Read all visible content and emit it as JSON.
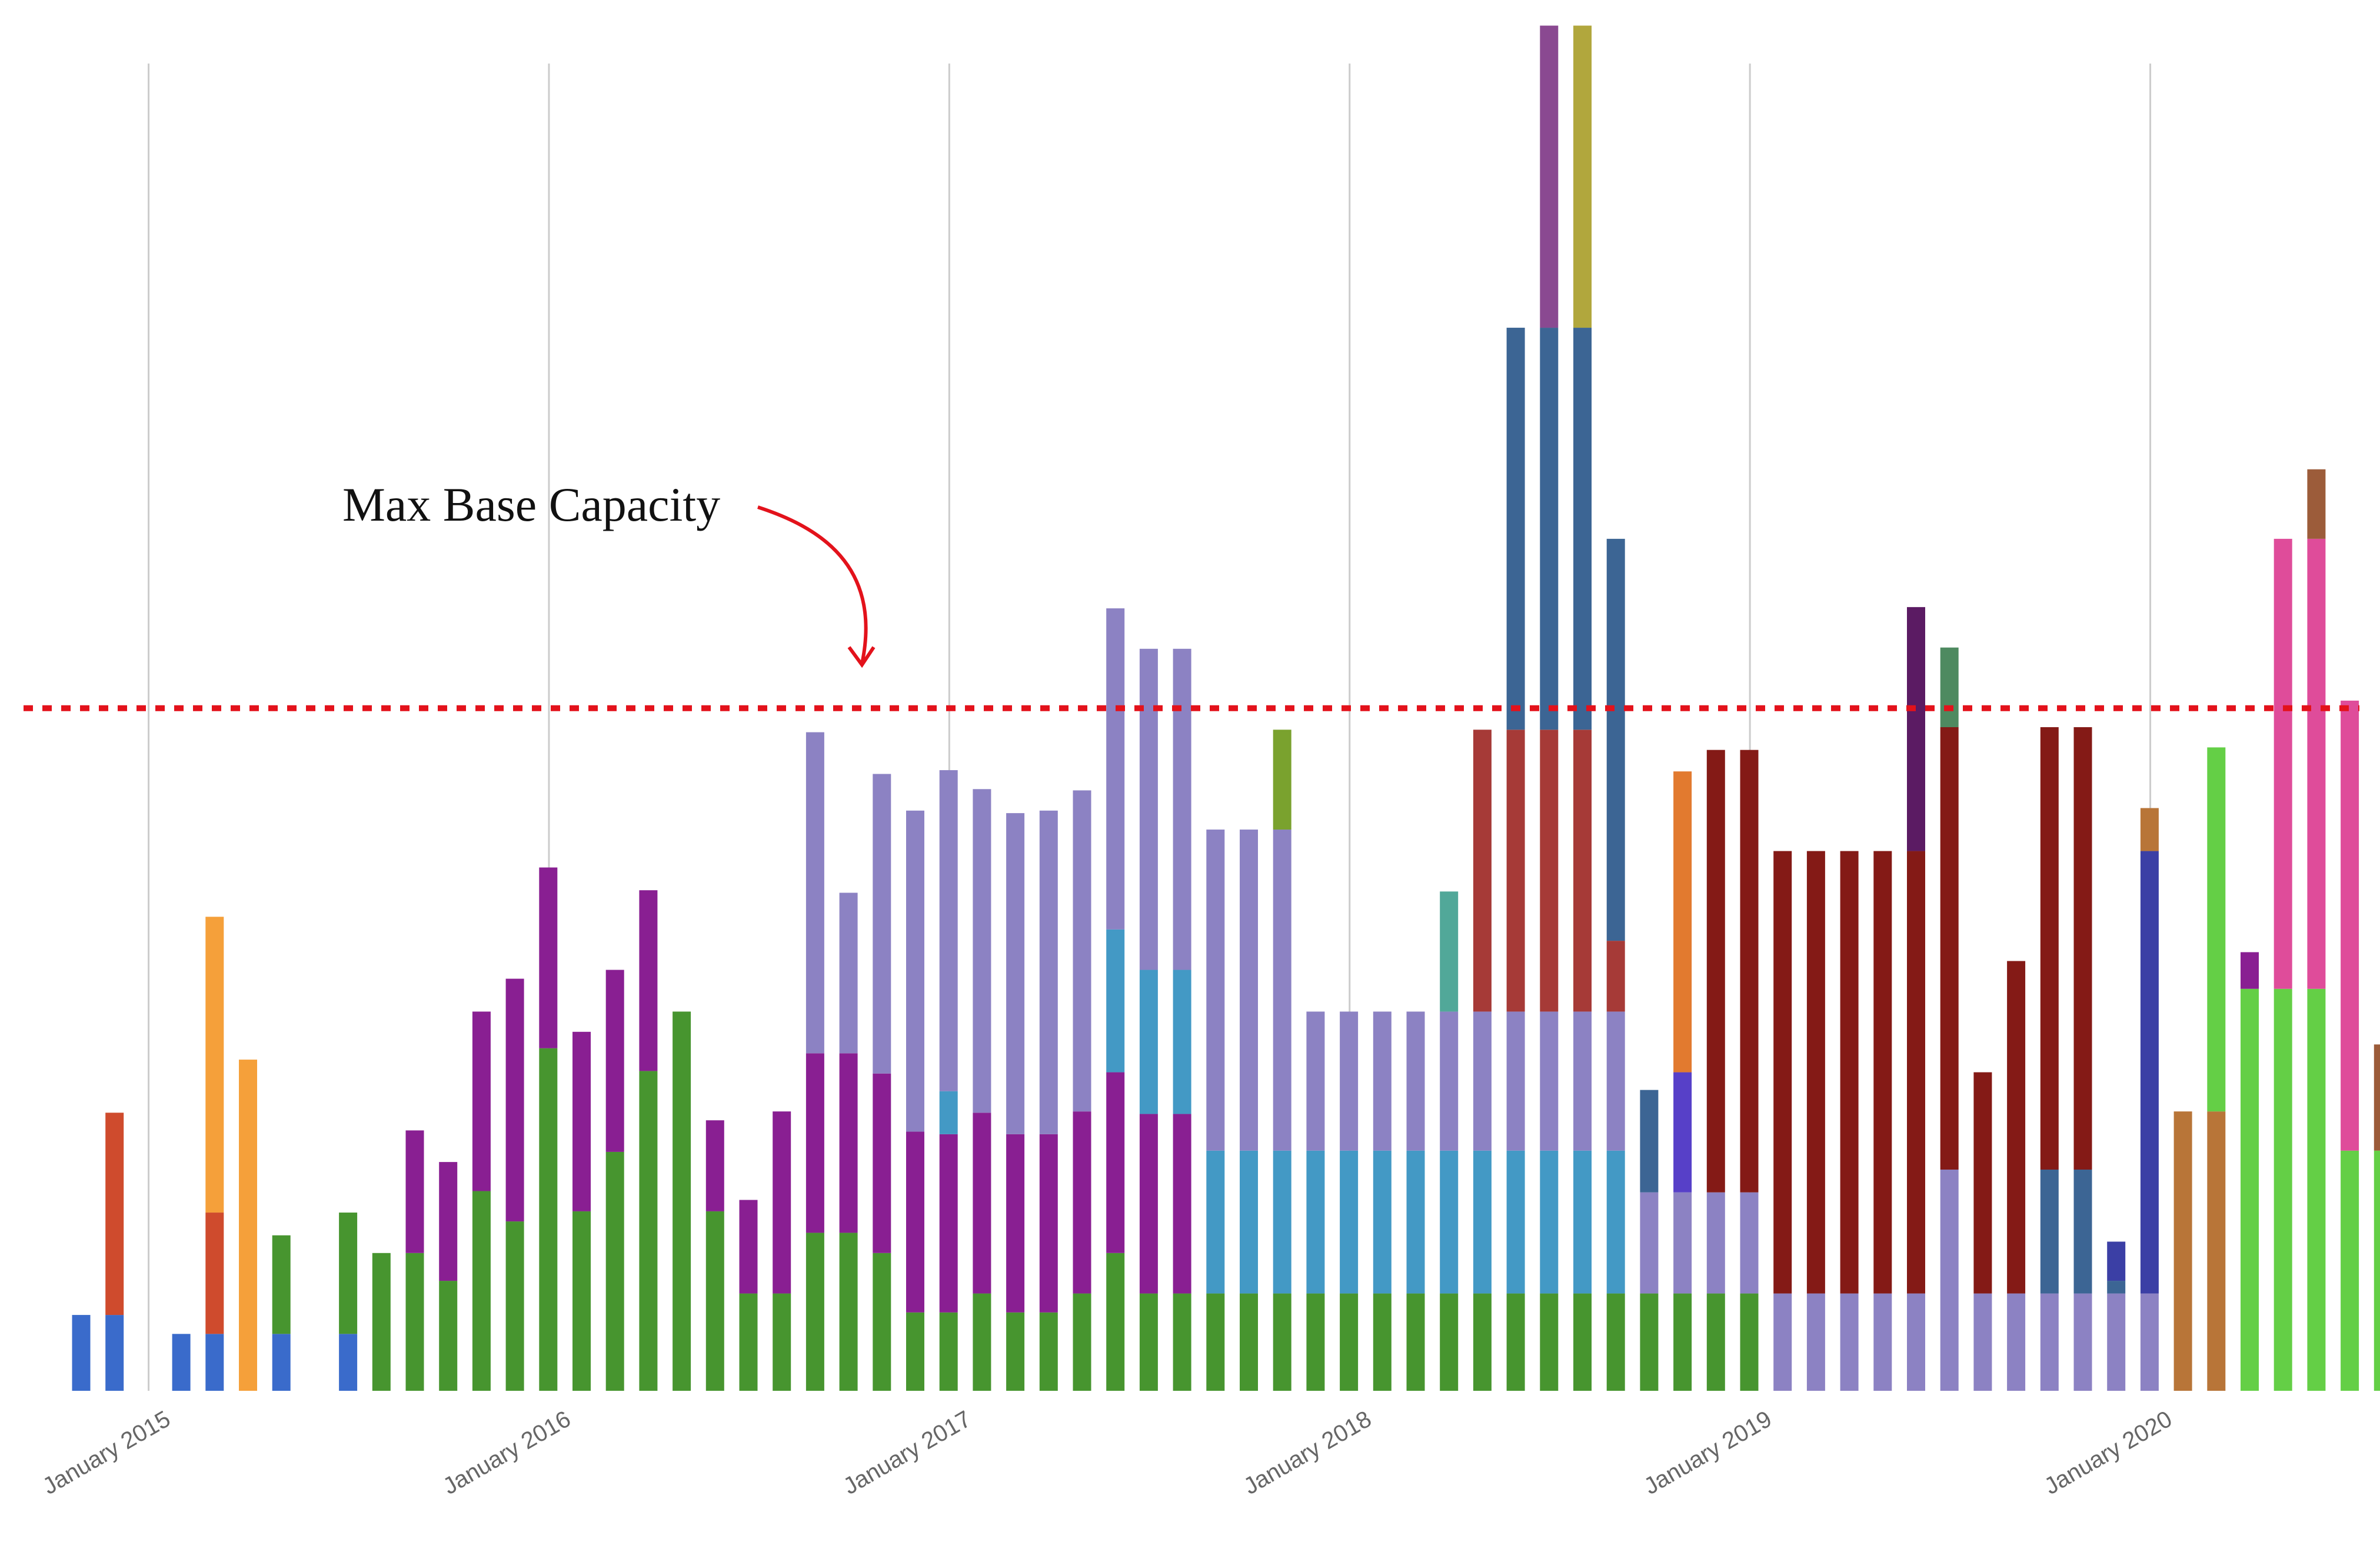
{
  "chart_data": {
    "type": "bar",
    "stacked": true,
    "title": "",
    "xlabel": "",
    "ylabel": "",
    "ylim": [
      0,
      10.5
    ],
    "grid": "vertical",
    "x_ticks": [
      "January 2015",
      "January 2016",
      "January 2017",
      "January 2018",
      "January 2019",
      "January 2020"
    ],
    "reference_line": {
      "value": 5.4,
      "style": "dotted",
      "color": "#e3121b"
    },
    "annotations": [
      {
        "text": "Max Base Capacity"
      }
    ],
    "series_colors": {
      "blue": "#3a6bcb",
      "orange_red": "#cf4b2d",
      "orange": "#f5a03a",
      "green": "#47952f",
      "purple": "#891f92",
      "lavender": "#8c82c3",
      "teal_blue": "#4399c5",
      "olive_green": "#7aa22e",
      "teal": "#51a899",
      "brick": "#a63a37",
      "slate_blue": "#3c6594",
      "mauve": "#8a4991",
      "olive_yellow": "#b1a73d",
      "violet": "#5740c8",
      "dark_orange": "#e27a2f",
      "maroon": "#841a16",
      "dark_purple": "#5b1b63",
      "sea_green": "#4e8a60",
      "navy": "#3b3fa5",
      "copper": "#b87538",
      "lime": "#64cf46",
      "pink": "#df4c9a",
      "brown": "#9c5c3a"
    },
    "months": [
      {
        "index": 0,
        "segments": [
          [
            "blue",
            0.6
          ]
        ]
      },
      {
        "index": 1,
        "segments": [
          [
            "blue",
            0.6
          ],
          [
            "orange_red",
            1.6
          ]
        ]
      },
      {
        "index": 3,
        "segments": [
          [
            "blue",
            0.45
          ]
        ]
      },
      {
        "index": 4,
        "segments": [
          [
            "blue",
            0.45
          ],
          [
            "orange_red",
            0.96
          ],
          [
            "orange",
            2.34
          ]
        ]
      },
      {
        "index": 5,
        "segments": [
          [
            "orange",
            2.62
          ]
        ]
      },
      {
        "index": 6,
        "segments": [
          [
            "blue",
            0.45
          ],
          [
            "green",
            0.78
          ]
        ]
      },
      {
        "index": 8,
        "segments": [
          [
            "blue",
            0.45
          ],
          [
            "green",
            0.96
          ]
        ]
      },
      {
        "index": 9,
        "segments": [
          [
            "green",
            1.09
          ]
        ]
      },
      {
        "index": 10,
        "segments": [
          [
            "green",
            1.09
          ],
          [
            "purple",
            0.97
          ]
        ]
      },
      {
        "index": 11,
        "segments": [
          [
            "green",
            0.87
          ],
          [
            "purple",
            0.94
          ]
        ]
      },
      {
        "index": 12,
        "segments": [
          [
            "green",
            1.58
          ],
          [
            "purple",
            1.42
          ]
        ]
      },
      {
        "index": 13,
        "segments": [
          [
            "green",
            1.34
          ],
          [
            "purple",
            1.92
          ]
        ]
      },
      {
        "index": 14,
        "segments": [
          [
            "green",
            2.71
          ],
          [
            "purple",
            1.43
          ]
        ]
      },
      {
        "index": 15,
        "segments": [
          [
            "green",
            1.42
          ],
          [
            "purple",
            1.42
          ]
        ]
      },
      {
        "index": 16,
        "segments": [
          [
            "green",
            1.89
          ],
          [
            "purple",
            1.44
          ]
        ]
      },
      {
        "index": 17,
        "segments": [
          [
            "green",
            2.53
          ],
          [
            "purple",
            1.43
          ]
        ]
      },
      {
        "index": 18,
        "segments": [
          [
            "green",
            3.0
          ]
        ]
      },
      {
        "index": 19,
        "segments": [
          [
            "green",
            1.42
          ],
          [
            "purple",
            0.72
          ]
        ]
      },
      {
        "index": 20,
        "segments": [
          [
            "green",
            0.77
          ],
          [
            "purple",
            0.74
          ]
        ]
      },
      {
        "index": 21,
        "segments": [
          [
            "green",
            0.77
          ],
          [
            "purple",
            1.44
          ]
        ]
      },
      {
        "index": 22,
        "segments": [
          [
            "green",
            1.25
          ],
          [
            "purple",
            1.42
          ],
          [
            "lavender",
            2.54
          ]
        ]
      },
      {
        "index": 23,
        "segments": [
          [
            "green",
            1.25
          ],
          [
            "purple",
            1.42
          ],
          [
            "lavender",
            1.27
          ]
        ]
      },
      {
        "index": 24,
        "segments": [
          [
            "green",
            1.09
          ],
          [
            "purple",
            1.42
          ],
          [
            "lavender",
            2.37
          ]
        ]
      },
      {
        "index": 25,
        "segments": [
          [
            "green",
            0.62
          ],
          [
            "purple",
            1.43
          ],
          [
            "lavender",
            2.54
          ]
        ]
      },
      {
        "index": 26,
        "segments": [
          [
            "green",
            0.62
          ],
          [
            "purple",
            1.41
          ],
          [
            "teal_blue",
            0.34
          ],
          [
            "lavender",
            2.54
          ]
        ]
      },
      {
        "index": 27,
        "segments": [
          [
            "green",
            0.77
          ],
          [
            "purple",
            1.43
          ],
          [
            "lavender",
            2.56
          ]
        ]
      },
      {
        "index": 28,
        "segments": [
          [
            "green",
            0.62
          ],
          [
            "purple",
            1.41
          ],
          [
            "lavender",
            2.54
          ]
        ]
      },
      {
        "index": 29,
        "segments": [
          [
            "green",
            0.62
          ],
          [
            "purple",
            1.41
          ],
          [
            "lavender",
            2.56
          ]
        ]
      },
      {
        "index": 30,
        "segments": [
          [
            "green",
            0.77
          ],
          [
            "purple",
            1.44
          ],
          [
            "lavender",
            2.54
          ]
        ]
      },
      {
        "index": 31,
        "segments": [
          [
            "green",
            1.09
          ],
          [
            "purple",
            1.43
          ],
          [
            "teal_blue",
            1.13
          ],
          [
            "lavender",
            2.54
          ]
        ]
      },
      {
        "index": 32,
        "segments": [
          [
            "green",
            0.77
          ],
          [
            "purple",
            1.42
          ],
          [
            "teal_blue",
            1.14
          ],
          [
            "lavender",
            2.54
          ]
        ]
      },
      {
        "index": 33,
        "segments": [
          [
            "green",
            0.77
          ],
          [
            "purple",
            1.42
          ],
          [
            "teal_blue",
            1.14
          ],
          [
            "lavender",
            2.54
          ]
        ]
      },
      {
        "index": 34,
        "segments": [
          [
            "green",
            0.77
          ],
          [
            "teal_blue",
            1.13
          ],
          [
            "lavender",
            2.54
          ]
        ]
      },
      {
        "index": 35,
        "segments": [
          [
            "green",
            0.77
          ],
          [
            "teal_blue",
            1.13
          ],
          [
            "lavender",
            2.54
          ]
        ]
      },
      {
        "index": 36,
        "segments": [
          [
            "green",
            0.77
          ],
          [
            "teal_blue",
            1.13
          ],
          [
            "lavender",
            2.54
          ],
          [
            "olive_green",
            0.79
          ]
        ]
      },
      {
        "index": 37,
        "segments": [
          [
            "green",
            0.77
          ],
          [
            "teal_blue",
            1.13
          ],
          [
            "lavender",
            1.1
          ]
        ]
      },
      {
        "index": 38,
        "segments": [
          [
            "green",
            0.77
          ],
          [
            "teal_blue",
            1.13
          ],
          [
            "lavender",
            1.1
          ]
        ]
      },
      {
        "index": 39,
        "segments": [
          [
            "green",
            0.77
          ],
          [
            "teal_blue",
            1.13
          ],
          [
            "lavender",
            1.1
          ]
        ]
      },
      {
        "index": 40,
        "segments": [
          [
            "green",
            0.77
          ],
          [
            "teal_blue",
            1.13
          ],
          [
            "lavender",
            1.1
          ]
        ]
      },
      {
        "index": 41,
        "segments": [
          [
            "green",
            0.77
          ],
          [
            "teal_blue",
            1.13
          ],
          [
            "lavender",
            1.1
          ],
          [
            "teal",
            0.95
          ]
        ]
      },
      {
        "index": 42,
        "segments": [
          [
            "green",
            0.77
          ],
          [
            "teal_blue",
            1.13
          ],
          [
            "lavender",
            1.1
          ],
          [
            "brick",
            2.23
          ]
        ]
      },
      {
        "index": 43,
        "segments": [
          [
            "green",
            0.77
          ],
          [
            "teal_blue",
            1.13
          ],
          [
            "lavender",
            1.1
          ],
          [
            "brick",
            2.23
          ],
          [
            "slate_blue",
            3.18
          ]
        ]
      },
      {
        "index": 44,
        "segments": [
          [
            "green",
            0.77
          ],
          [
            "teal_blue",
            1.13
          ],
          [
            "lavender",
            1.1
          ],
          [
            "brick",
            2.23
          ],
          [
            "slate_blue",
            3.18
          ],
          [
            "mauve",
            2.39
          ]
        ]
      },
      {
        "index": 45,
        "segments": [
          [
            "green",
            0.77
          ],
          [
            "teal_blue",
            1.13
          ],
          [
            "lavender",
            1.1
          ],
          [
            "brick",
            2.23
          ],
          [
            "slate_blue",
            3.18
          ],
          [
            "olive_yellow",
            2.39
          ]
        ]
      },
      {
        "index": 46,
        "segments": [
          [
            "green",
            0.77
          ],
          [
            "teal_blue",
            1.13
          ],
          [
            "lavender",
            1.1
          ],
          [
            "brick",
            0.56
          ],
          [
            "slate_blue",
            3.18
          ]
        ]
      },
      {
        "index": 47,
        "segments": [
          [
            "green",
            0.77
          ],
          [
            "lavender",
            0.8
          ],
          [
            "slate_blue",
            0.81
          ]
        ]
      },
      {
        "index": 48,
        "segments": [
          [
            "green",
            0.77
          ],
          [
            "lavender",
            0.8
          ],
          [
            "violet",
            0.95
          ],
          [
            "dark_orange",
            2.38
          ]
        ]
      },
      {
        "index": 49,
        "segments": [
          [
            "green",
            0.77
          ],
          [
            "lavender",
            0.8
          ],
          [
            "maroon",
            3.5
          ]
        ]
      },
      {
        "index": 50,
        "segments": [
          [
            "green",
            0.77
          ],
          [
            "lavender",
            0.8
          ],
          [
            "maroon",
            3.5
          ]
        ]
      },
      {
        "index": 51,
        "segments": [
          [
            "lavender",
            0.77
          ],
          [
            "maroon",
            3.5
          ]
        ]
      },
      {
        "index": 52,
        "segments": [
          [
            "lavender",
            0.77
          ],
          [
            "maroon",
            3.5
          ]
        ]
      },
      {
        "index": 53,
        "segments": [
          [
            "lavender",
            0.77
          ],
          [
            "maroon",
            3.5
          ]
        ]
      },
      {
        "index": 54,
        "segments": [
          [
            "lavender",
            0.77
          ],
          [
            "maroon",
            3.5
          ]
        ]
      },
      {
        "index": 55,
        "segments": [
          [
            "lavender",
            0.77
          ],
          [
            "maroon",
            3.5
          ],
          [
            "dark_purple",
            1.93
          ]
        ]
      },
      {
        "index": 56,
        "segments": [
          [
            "lavender",
            1.75
          ],
          [
            "maroon",
            3.5
          ],
          [
            "sea_green",
            0.63
          ]
        ]
      },
      {
        "index": 57,
        "segments": [
          [
            "lavender",
            0.77
          ],
          [
            "maroon",
            1.75
          ]
        ]
      },
      {
        "index": 58,
        "segments": [
          [
            "lavender",
            0.77
          ],
          [
            "maroon",
            2.63
          ]
        ]
      },
      {
        "index": 59,
        "segments": [
          [
            "lavender",
            0.77
          ],
          [
            "slate_blue",
            0.98
          ],
          [
            "maroon",
            3.5
          ]
        ]
      },
      {
        "index": 60,
        "segments": [
          [
            "lavender",
            0.77
          ],
          [
            "slate_blue",
            0.98
          ],
          [
            "maroon",
            3.5
          ]
        ]
      },
      {
        "index": 61,
        "segments": [
          [
            "lavender",
            0.77
          ],
          [
            "slate_blue",
            0.1
          ],
          [
            "navy",
            0.31
          ]
        ]
      },
      {
        "index": 62,
        "segments": [
          [
            "lavender",
            0.77
          ],
          [
            "navy",
            3.5
          ],
          [
            "copper",
            0.34
          ]
        ]
      },
      {
        "index": 63,
        "segments": [
          [
            "copper",
            2.21
          ]
        ]
      },
      {
        "index": 64,
        "segments": [
          [
            "copper",
            2.21
          ],
          [
            "lime",
            2.88
          ]
        ]
      },
      {
        "index": 65,
        "segments": [
          [
            "lime",
            3.18
          ],
          [
            "purple",
            0.29
          ]
        ]
      },
      {
        "index": 66,
        "segments": [
          [
            "lime",
            3.18
          ],
          [
            "pink",
            3.56
          ]
        ]
      },
      {
        "index": 67,
        "segments": [
          [
            "lime",
            3.18
          ],
          [
            "pink",
            3.56
          ],
          [
            "brown",
            0.55
          ]
        ]
      },
      {
        "index": 68,
        "segments": [
          [
            "lime",
            1.9
          ],
          [
            "pink",
            3.56
          ]
        ]
      },
      {
        "index": 69,
        "segments": [
          [
            "lime",
            1.9
          ],
          [
            "brown",
            0.84
          ]
        ]
      }
    ]
  }
}
